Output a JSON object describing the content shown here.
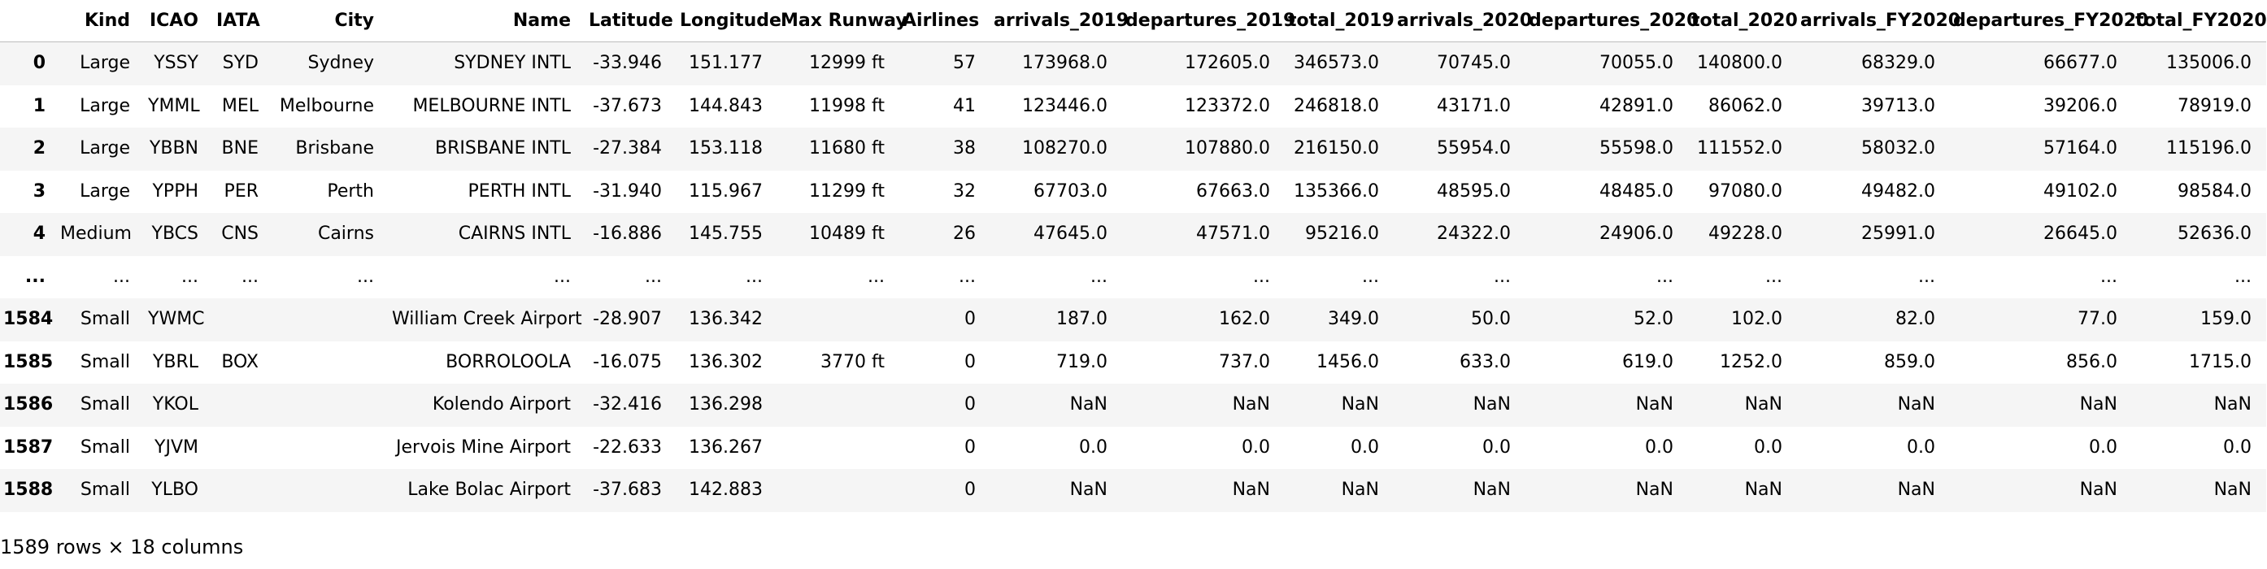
{
  "table": {
    "index_header": "",
    "columns": [
      "Kind",
      "ICAO",
      "IATA",
      "City",
      "Name",
      "Latitude",
      "Longitude",
      "Max Runway",
      "Airlines",
      "arrivals_2019",
      "departures_2019",
      "total_2019",
      "arrivals_2020",
      "departures_2020",
      "total_2020",
      "arrivals_FY2020",
      "departures_FY2020",
      "total_FY2020"
    ],
    "rows": [
      {
        "index": "0",
        "cells": [
          "Large",
          "YSSY",
          "SYD",
          "Sydney",
          "SYDNEY INTL",
          "-33.946",
          "151.177",
          "12999 ft",
          "57",
          "173968.0",
          "172605.0",
          "346573.0",
          "70745.0",
          "70055.0",
          "140800.0",
          "68329.0",
          "66677.0",
          "135006.0"
        ]
      },
      {
        "index": "1",
        "cells": [
          "Large",
          "YMML",
          "MEL",
          "Melbourne",
          "MELBOURNE INTL",
          "-37.673",
          "144.843",
          "11998 ft",
          "41",
          "123446.0",
          "123372.0",
          "246818.0",
          "43171.0",
          "42891.0",
          "86062.0",
          "39713.0",
          "39206.0",
          "78919.0"
        ]
      },
      {
        "index": "2",
        "cells": [
          "Large",
          "YBBN",
          "BNE",
          "Brisbane",
          "BRISBANE INTL",
          "-27.384",
          "153.118",
          "11680 ft",
          "38",
          "108270.0",
          "107880.0",
          "216150.0",
          "55954.0",
          "55598.0",
          "111552.0",
          "58032.0",
          "57164.0",
          "115196.0"
        ]
      },
      {
        "index": "3",
        "cells": [
          "Large",
          "YPPH",
          "PER",
          "Perth",
          "PERTH INTL",
          "-31.940",
          "115.967",
          "11299 ft",
          "32",
          "67703.0",
          "67663.0",
          "135366.0",
          "48595.0",
          "48485.0",
          "97080.0",
          "49482.0",
          "49102.0",
          "98584.0"
        ]
      },
      {
        "index": "4",
        "cells": [
          "Medium",
          "YBCS",
          "CNS",
          "Cairns",
          "CAIRNS INTL",
          "-16.886",
          "145.755",
          "10489 ft",
          "26",
          "47645.0",
          "47571.0",
          "95216.0",
          "24322.0",
          "24906.0",
          "49228.0",
          "25991.0",
          "26645.0",
          "52636.0"
        ]
      },
      {
        "index": "...",
        "cells": [
          "...",
          "...",
          "...",
          "...",
          "...",
          "...",
          "...",
          "...",
          "...",
          "...",
          "...",
          "...",
          "...",
          "...",
          "...",
          "...",
          "...",
          "..."
        ]
      },
      {
        "index": "1584",
        "cells": [
          "Small",
          "YWMC",
          "",
          "",
          "William Creek Airport",
          "-28.907",
          "136.342",
          "",
          "0",
          "187.0",
          "162.0",
          "349.0",
          "50.0",
          "52.0",
          "102.0",
          "82.0",
          "77.0",
          "159.0"
        ]
      },
      {
        "index": "1585",
        "cells": [
          "Small",
          "YBRL",
          "BOX",
          "",
          "BORROLOOLA",
          "-16.075",
          "136.302",
          "3770 ft",
          "0",
          "719.0",
          "737.0",
          "1456.0",
          "633.0",
          "619.0",
          "1252.0",
          "859.0",
          "856.0",
          "1715.0"
        ]
      },
      {
        "index": "1586",
        "cells": [
          "Small",
          "YKOL",
          "",
          "",
          "Kolendo Airport",
          "-32.416",
          "136.298",
          "",
          "0",
          "NaN",
          "NaN",
          "NaN",
          "NaN",
          "NaN",
          "NaN",
          "NaN",
          "NaN",
          "NaN"
        ]
      },
      {
        "index": "1587",
        "cells": [
          "Small",
          "YJVM",
          "",
          "",
          "Jervois Mine Airport",
          "-22.633",
          "136.267",
          "",
          "0",
          "0.0",
          "0.0",
          "0.0",
          "0.0",
          "0.0",
          "0.0",
          "0.0",
          "0.0",
          "0.0"
        ]
      },
      {
        "index": "1588",
        "cells": [
          "Small",
          "YLBO",
          "",
          "",
          "Lake Bolac Airport",
          "-37.683",
          "142.883",
          "",
          "0",
          "NaN",
          "NaN",
          "NaN",
          "NaN",
          "NaN",
          "NaN",
          "NaN",
          "NaN",
          "NaN"
        ]
      }
    ]
  },
  "shape_text": "1589 rows × 18 columns"
}
